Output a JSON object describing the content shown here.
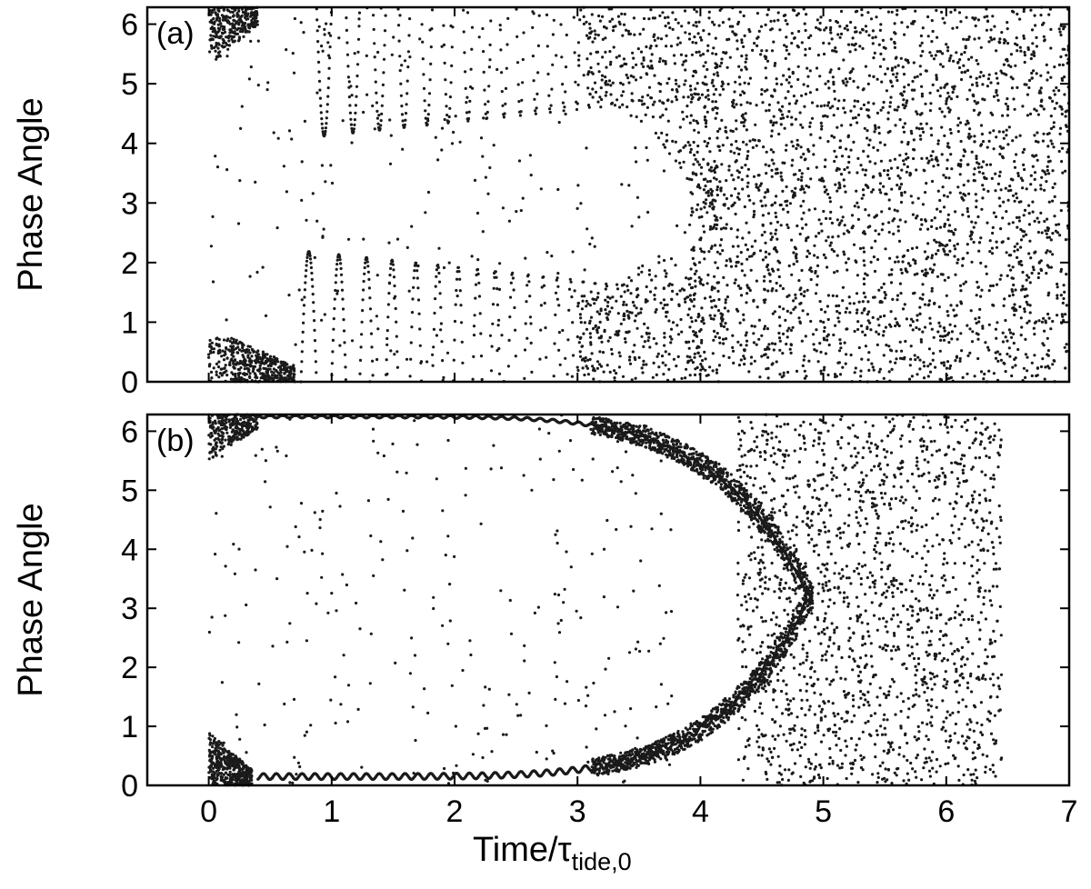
{
  "chart_data": [
    {
      "type": "scatter",
      "panel_label": "(a)",
      "ylabel": "Phase Angle",
      "xlabel": "",
      "xlim": [
        -0.5,
        7
      ],
      "ylim": [
        0,
        6.2832
      ],
      "xticks": [
        "0",
        "1",
        "2",
        "3",
        "4",
        "5",
        "6",
        "7"
      ],
      "xtick_values": [
        0,
        1,
        2,
        3,
        4,
        5,
        6,
        7
      ],
      "xticks_visible": false,
      "yticks": [
        "0",
        "1",
        "2",
        "3",
        "4",
        "5",
        "6"
      ],
      "ytick_values": [
        0,
        1,
        2,
        3,
        4,
        5,
        6
      ],
      "grid": false,
      "marker_color": "#1a1a1a",
      "structure": {
        "initial_cluster_low": {
          "x": [
            0.0,
            0.7
          ],
          "y": [
            0.0,
            0.9
          ]
        },
        "initial_cluster_high": {
          "x": [
            0.0,
            0.4
          ],
          "y": [
            5.3,
            6.2832
          ]
        },
        "libration_start": 0.75,
        "libration_end": 4.0,
        "libration_amplitude_start": 2.2,
        "libration_amplitude_end": 1.5,
        "libration_period_start": 0.26,
        "libration_period_end": 0.12,
        "circulation_start": 3.9,
        "circulation_end": 7.0
      }
    },
    {
      "type": "scatter",
      "panel_label": "(b)",
      "ylabel": "Phase Angle",
      "xlabel": "Time/τ",
      "xlabel_subscript": "tide,0",
      "xlim": [
        -0.5,
        7
      ],
      "ylim": [
        0,
        6.2832
      ],
      "xticks": [
        "0",
        "1",
        "2",
        "3",
        "4",
        "5",
        "6",
        "7"
      ],
      "xtick_values": [
        0,
        1,
        2,
        3,
        4,
        5,
        6,
        7
      ],
      "xticks_visible": true,
      "yticks": [
        "0",
        "1",
        "2",
        "3",
        "4",
        "5",
        "6"
      ],
      "ytick_values": [
        0,
        1,
        2,
        3,
        4,
        5,
        6
      ],
      "grid": false,
      "marker_color": "#1a1a1a",
      "structure": {
        "initial_cluster_low": {
          "x": [
            0.0,
            0.35
          ],
          "y": [
            0.0,
            0.9
          ]
        },
        "initial_cluster_high": {
          "x": [
            0.0,
            0.4
          ],
          "y": [
            5.5,
            6.2832
          ]
        },
        "branch_start": 0.4,
        "branch_bifurcation": 4.9,
        "branch_low_start_y": 0.15,
        "branch_high_start_y": 6.25,
        "circulation_start": 4.3,
        "circulation_end": 6.45
      }
    }
  ]
}
